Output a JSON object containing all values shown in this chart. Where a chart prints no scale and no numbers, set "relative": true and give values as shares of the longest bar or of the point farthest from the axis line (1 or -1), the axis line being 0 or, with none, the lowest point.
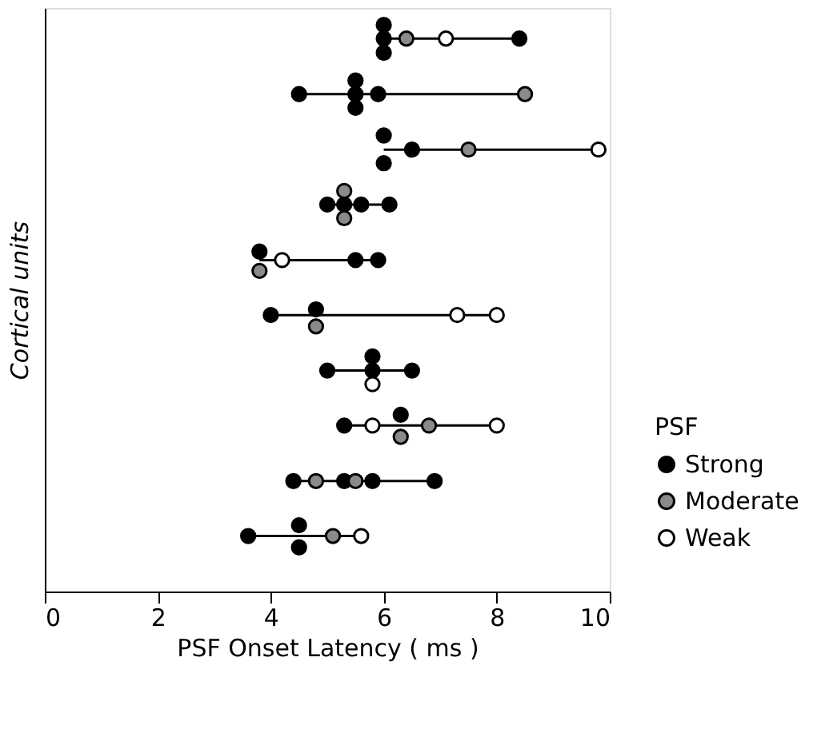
{
  "chart_data": {
    "type": "scatter",
    "relative": true,
    "xlabel": "PSF Onset Latency ( ms )",
    "ylabel": "Cortical units",
    "legend_title": "PSF",
    "xlim": [
      0,
      10
    ],
    "xticks": [
      0,
      2,
      4,
      6,
      8,
      10
    ],
    "tick_labels": "x",
    "grid": false,
    "legend": "bottom right",
    "marker": "circle",
    "series": [
      {
        "type": "line",
        "marker": "none",
        "color": "#000000",
        "x": [
          6.0,
          8.4
        ],
        "values": [
          0.976,
          0.976
        ]
      },
      {
        "type": "line",
        "marker": "none",
        "color": "#000000",
        "x": [
          4.5,
          8.5
        ],
        "values": [
          0.878,
          0.878
        ]
      },
      {
        "type": "line",
        "marker": "none",
        "color": "#000000",
        "x": [
          6.0,
          9.8
        ],
        "values": [
          0.78,
          0.78
        ]
      },
      {
        "type": "line",
        "marker": "none",
        "color": "#000000",
        "x": [
          5.0,
          6.1
        ],
        "values": [
          0.683,
          0.683
        ]
      },
      {
        "type": "line",
        "marker": "none",
        "color": "#000000",
        "x": [
          3.8,
          5.9
        ],
        "values": [
          0.585,
          0.585
        ]
      },
      {
        "type": "line",
        "marker": "none",
        "color": "#000000",
        "x": [
          4.0,
          8.0
        ],
        "values": [
          0.488,
          0.488
        ]
      },
      {
        "type": "line",
        "marker": "none",
        "color": "#000000",
        "x": [
          5.0,
          6.5
        ],
        "values": [
          0.39,
          0.39
        ]
      },
      {
        "type": "line",
        "marker": "none",
        "color": "#000000",
        "x": [
          5.3,
          8.0
        ],
        "values": [
          0.293,
          0.293
        ]
      },
      {
        "type": "line",
        "marker": "none",
        "color": "#000000",
        "x": [
          4.4,
          6.9
        ],
        "values": [
          0.195,
          0.195
        ]
      },
      {
        "type": "line",
        "marker": "none",
        "color": "#000000",
        "x": [
          3.6,
          5.6
        ],
        "values": [
          0.098,
          0.098
        ]
      },
      {
        "name": "Strong",
        "color": "#000000",
        "x": [
          6.0,
          6.0,
          6.0,
          8.4,
          4.5,
          5.5,
          5.5,
          5.5,
          5.9,
          6.0,
          6.0,
          6.5,
          5.0,
          5.3,
          5.6,
          6.1,
          3.8,
          5.5,
          5.9,
          4.0,
          4.8,
          5.0,
          5.8,
          5.8,
          6.5,
          5.3,
          6.3,
          4.4,
          5.3,
          5.8,
          6.9,
          3.6,
          4.5,
          4.5
        ],
        "values": [
          1,
          0.976,
          0.951,
          0.976,
          0.878,
          0.902,
          0.878,
          0.854,
          0.878,
          0.805,
          0.756,
          0.78,
          0.683,
          0.683,
          0.683,
          0.683,
          0.6,
          0.585,
          0.585,
          0.488,
          0.498,
          0.39,
          0.415,
          0.39,
          0.39,
          0.293,
          0.312,
          0.195,
          0.195,
          0.195,
          0.195,
          0.098,
          0.117,
          0.078
        ]
      },
      {
        "name": "Moderate",
        "color": "#8a8a8a",
        "x": [
          6.4,
          8.5,
          7.5,
          5.3,
          5.3,
          3.8,
          4.8,
          6.3,
          6.8,
          4.8,
          5.5,
          5.1
        ],
        "values": [
          0.976,
          0.878,
          0.78,
          0.707,
          0.659,
          0.566,
          0.468,
          0.273,
          0.293,
          0.195,
          0.195,
          0.098
        ]
      },
      {
        "name": "Weak",
        "color": "#ffffff",
        "x": [
          7.1,
          9.8,
          4.2,
          7.3,
          8.0,
          5.8,
          5.8,
          8.0,
          5.6
        ],
        "values": [
          0.976,
          0.78,
          0.585,
          0.488,
          0.488,
          0.366,
          0.293,
          0.293,
          0.098
        ]
      }
    ]
  }
}
